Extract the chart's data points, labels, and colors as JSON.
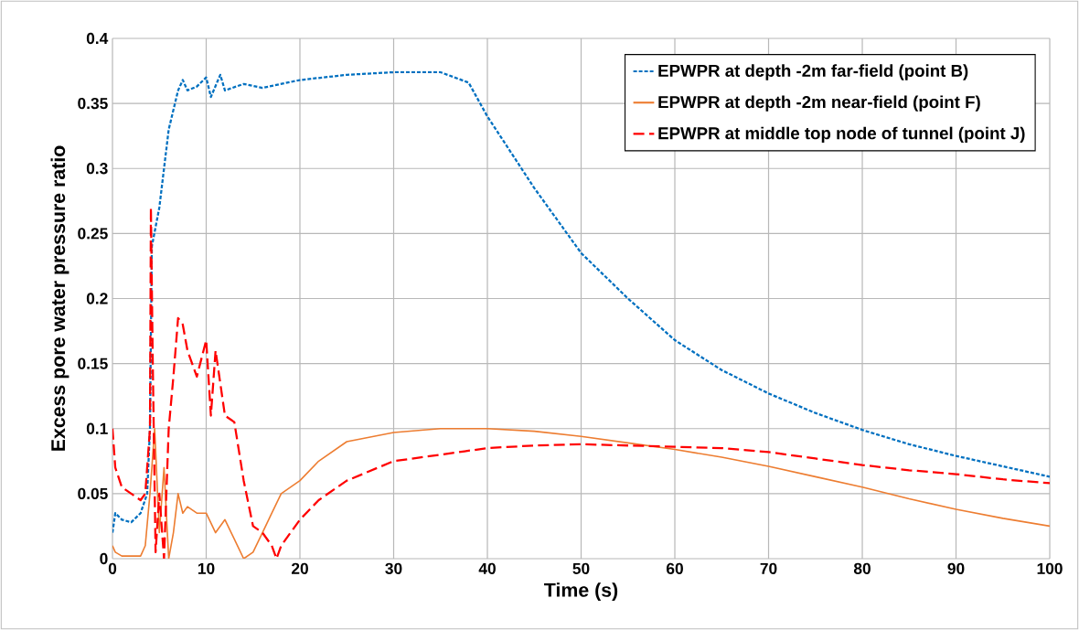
{
  "chart_data": {
    "type": "line",
    "xlabel": "Time (s)",
    "ylabel": "Excess pore water pressure ratio",
    "xlim": [
      0,
      100
    ],
    "ylim": [
      0,
      0.4
    ],
    "xticks": [
      0,
      10,
      20,
      30,
      40,
      50,
      60,
      70,
      80,
      90,
      100
    ],
    "yticks": [
      0,
      0.05,
      0.1,
      0.15,
      0.2,
      0.25,
      0.3,
      0.35,
      0.4
    ],
    "grid": true,
    "legend": "top right",
    "marker": "none",
    "series": [
      {
        "name": "EPWPR at depth -2m far-field (point B)",
        "color": "#0070c0",
        "line_style": "dotted",
        "x": [
          0,
          0.3,
          1,
          2,
          3,
          3.7,
          4,
          4.2,
          5,
          5.5,
          6,
          7,
          7.5,
          8,
          9,
          10,
          10.5,
          11.5,
          12,
          14,
          16,
          20,
          25,
          30,
          35,
          38,
          40,
          45,
          50,
          55,
          60,
          65,
          70,
          75,
          80,
          85,
          90,
          95,
          100
        ],
        "values": [
          0.02,
          0.035,
          0.03,
          0.028,
          0.035,
          0.05,
          0.1,
          0.24,
          0.27,
          0.3,
          0.33,
          0.36,
          0.368,
          0.36,
          0.363,
          0.37,
          0.355,
          0.372,
          0.36,
          0.365,
          0.362,
          0.368,
          0.372,
          0.374,
          0.374,
          0.366,
          0.34,
          0.285,
          0.235,
          0.2,
          0.168,
          0.145,
          0.127,
          0.112,
          0.099,
          0.088,
          0.079,
          0.071,
          0.063
        ]
      },
      {
        "name": "EPWPR at depth -2m near-field (point F)",
        "color": "#ed7d31",
        "line_style": "solid",
        "x": [
          0,
          0.3,
          1,
          3,
          3.5,
          4,
          4.5,
          5,
          5.5,
          6,
          6.5,
          7,
          7.5,
          8,
          9,
          10,
          11,
          12,
          13,
          14,
          15,
          16,
          17,
          18,
          20,
          22,
          25,
          30,
          35,
          40,
          45,
          50,
          55,
          60,
          65,
          70,
          75,
          80,
          85,
          90,
          95,
          100
        ],
        "values": [
          0.01,
          0.005,
          0.002,
          0.002,
          0.01,
          0.05,
          0.1,
          0.02,
          0.07,
          0.0,
          0.02,
          0.05,
          0.035,
          0.04,
          0.035,
          0.035,
          0.02,
          0.03,
          0.015,
          0.0,
          0.005,
          0.02,
          0.035,
          0.05,
          0.06,
          0.075,
          0.09,
          0.097,
          0.1,
          0.1,
          0.098,
          0.094,
          0.089,
          0.084,
          0.078,
          0.071,
          0.063,
          0.055,
          0.046,
          0.038,
          0.031,
          0.025
        ]
      },
      {
        "name": "EPWPR at middle top node of tunnel (point J)",
        "color": "#ff0000",
        "line_style": "dashed",
        "x": [
          0,
          0.3,
          1,
          2,
          3,
          3.5,
          4,
          4.1,
          4.3,
          4.6,
          5,
          5.5,
          6,
          6.5,
          7,
          7.5,
          8,
          9,
          10,
          10.5,
          11,
          12,
          13,
          14,
          15,
          16,
          17,
          17.5,
          18,
          20,
          22,
          25,
          30,
          35,
          40,
          45,
          50,
          55,
          60,
          65,
          70,
          75,
          80,
          85,
          90,
          95,
          100
        ],
        "values": [
          0.1,
          0.07,
          0.055,
          0.05,
          0.045,
          0.05,
          0.1,
          0.27,
          0.15,
          0.005,
          0.05,
          0.0,
          0.1,
          0.14,
          0.185,
          0.18,
          0.16,
          0.14,
          0.168,
          0.11,
          0.16,
          0.11,
          0.105,
          0.06,
          0.025,
          0.02,
          0.01,
          0.0,
          0.01,
          0.03,
          0.045,
          0.06,
          0.075,
          0.08,
          0.085,
          0.087,
          0.088,
          0.087,
          0.086,
          0.085,
          0.082,
          0.077,
          0.072,
          0.068,
          0.065,
          0.061,
          0.058
        ]
      }
    ]
  }
}
